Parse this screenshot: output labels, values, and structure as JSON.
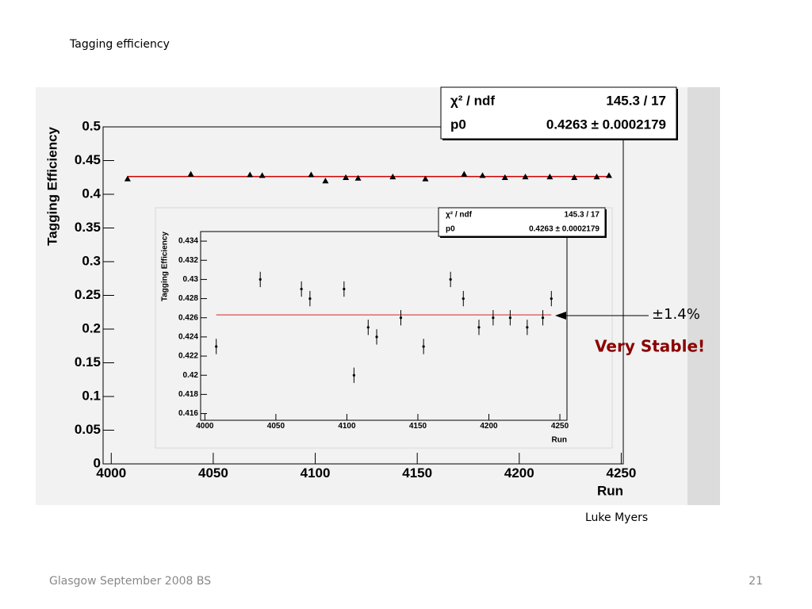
{
  "slide": {
    "title": "Tagging efficiency",
    "author": "Luke Myers",
    "footer": "Glasgow September 2008 BS",
    "page": "21",
    "spread": "±1.4%",
    "verdict": "Very Stable!"
  },
  "chart_data": [
    {
      "type": "scatter",
      "xlabel": "Run",
      "ylabel": "Tagging Efficiency",
      "x": [
        4008,
        4039,
        4068,
        4074,
        4098,
        4105,
        4115,
        4121,
        4138,
        4154,
        4173,
        4182,
        4193,
        4203,
        4215,
        4227,
        4238,
        4244
      ],
      "series": [
        {
          "values": [
            0.423,
            0.43,
            0.429,
            0.428,
            0.429,
            0.42,
            0.425,
            0.424,
            0.426,
            0.423,
            0.43,
            0.428,
            0.425,
            0.426,
            0.426,
            0.425,
            0.426,
            0.428
          ],
          "color": "#000000",
          "marker": "triangle"
        }
      ],
      "fit": {
        "value": 0.4263,
        "color": "#d00000"
      },
      "stats": [
        {
          "label": "χ² / ndf",
          "value": "145.3 / 17"
        },
        {
          "label": "p0",
          "value": "0.4263 ± 0.0002179"
        }
      ],
      "xlim": [
        3996,
        4251
      ],
      "xticks": [
        4000,
        4050,
        4100,
        4150,
        4200,
        4250
      ],
      "ylim": [
        0,
        0.5
      ],
      "yticks": [
        0,
        0.05,
        0.1,
        0.15,
        0.2,
        0.25,
        0.3,
        0.35,
        0.4,
        0.45,
        0.5
      ]
    },
    {
      "type": "scatter",
      "xlabel": "Run",
      "ylabel": "Tagging Efficiency",
      "x": [
        4008,
        4039,
        4068,
        4074,
        4098,
        4105,
        4115,
        4121,
        4138,
        4154,
        4173,
        4182,
        4193,
        4203,
        4215,
        4227,
        4238,
        4244
      ],
      "series": [
        {
          "values": [
            0.423,
            0.43,
            0.429,
            0.428,
            0.429,
            0.42,
            0.425,
            0.424,
            0.426,
            0.423,
            0.43,
            0.428,
            0.425,
            0.426,
            0.426,
            0.425,
            0.426,
            0.428
          ],
          "errors": [
            0.0008,
            0.0008,
            0.0008,
            0.0008,
            0.0008,
            0.0008,
            0.0008,
            0.0008,
            0.0008,
            0.0008,
            0.0008,
            0.0008,
            0.0008,
            0.0008,
            0.0008,
            0.0008,
            0.0008,
            0.0008
          ],
          "color": "#000000",
          "marker": "dot"
        }
      ],
      "fit": {
        "value": 0.4263,
        "color": "#e06868"
      },
      "stats": [
        {
          "label": "χ² / ndf",
          "value": "145.3 / 17"
        },
        {
          "label": "p0",
          "value": "0.4263 ± 0.0002179"
        }
      ],
      "xlim": [
        3997,
        4255
      ],
      "xticks": [
        4000,
        4050,
        4100,
        4150,
        4200,
        4250
      ],
      "ylim": [
        0.4153,
        0.435
      ],
      "yticks": [
        0.416,
        0.418,
        0.42,
        0.422,
        0.424,
        0.426,
        0.428,
        0.43,
        0.432,
        0.434
      ]
    }
  ]
}
